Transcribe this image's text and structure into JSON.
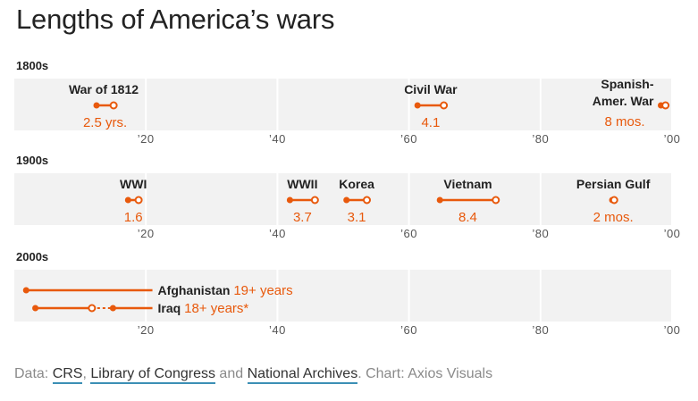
{
  "title": "Lengths of America’s wars",
  "colors": {
    "accent": "#e8590c",
    "band": "#f2f2f2",
    "grid": "#ffffff",
    "text": "#222222",
    "muted": "#8a8a8a",
    "link": "#3b8fb5"
  },
  "footer": {
    "prefix": "Data: ",
    "sources": [
      "CRS",
      "Library of Congress",
      "National Archives"
    ],
    "sep1": ", ",
    "sep2": " and ",
    "suffix": ". Chart: Axios Visuals"
  },
  "chart_data": {
    "type": "timeline",
    "x_ticks": [
      "’20",
      "’40",
      "’60",
      "’80",
      "’00"
    ],
    "tick_values": [
      20,
      40,
      60,
      80,
      100
    ],
    "xlim": [
      0,
      100
    ],
    "panels": [
      {
        "century": "1800s",
        "wars": [
          {
            "name": [
              "War of 1812"
            ],
            "duration": "2.5 yrs.",
            "start": 12.5,
            "end": 15.1,
            "open_end": false
          },
          {
            "name": [
              "Civil War"
            ],
            "duration": "4.1",
            "start": 61.3,
            "end": 65.3,
            "open_end": false
          },
          {
            "name": [
              "Spanish-",
              "Amer. War"
            ],
            "duration": "8 mos.",
            "start": 98.3,
            "end": 99.0,
            "open_end": false
          }
        ]
      },
      {
        "century": "1900s",
        "wars": [
          {
            "name": [
              "WWI"
            ],
            "duration": "1.6",
            "start": 17.3,
            "end": 18.9,
            "open_end": false
          },
          {
            "name": [
              "WWII"
            ],
            "duration": "3.7",
            "start": 41.9,
            "end": 45.7,
            "open_end": false
          },
          {
            "name": [
              "Korea"
            ],
            "duration": "3.1",
            "start": 50.5,
            "end": 53.6,
            "open_end": false
          },
          {
            "name": [
              "Vietnam"
            ],
            "duration": "8.4",
            "start": 64.7,
            "end": 73.2,
            "open_end": false
          },
          {
            "name": [
              "Persian Gulf"
            ],
            "duration": "2 mos.",
            "start": 90.9,
            "end": 91.2,
            "open_end": false
          }
        ]
      },
      {
        "century": "2000s",
        "wars": [
          {
            "name": [
              "Afghanistan"
            ],
            "duration": "19+ years",
            "start": 1.8,
            "end": 21.0,
            "open_end": true
          },
          {
            "name": [
              "Iraq"
            ],
            "duration": "18+ years*",
            "start": 3.2,
            "end": 21.0,
            "pause_start": 11.8,
            "pause_end": 15.0,
            "open_end": true
          }
        ]
      }
    ]
  }
}
